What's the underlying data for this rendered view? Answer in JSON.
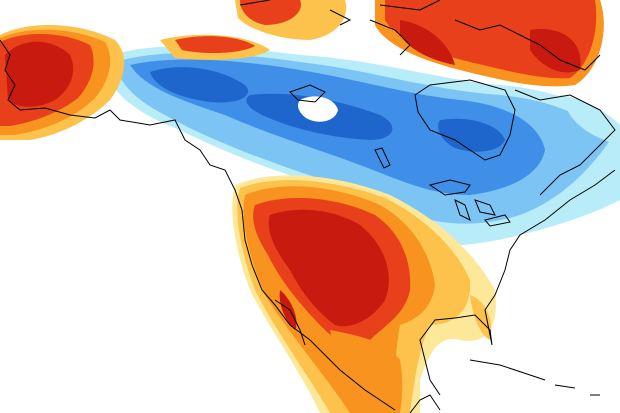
{
  "map": {
    "region": "North America",
    "palette": {
      "dark_red": "#c81a0e",
      "red": "#e8401a",
      "orange": "#f7931e",
      "light_orange": "#fcc24c",
      "yellow": "#fde89a",
      "white": "#ffffff",
      "light_cyan": "#b8ecf8",
      "light_blue": "#7cc4f4",
      "blue": "#3f8fe8",
      "dark_blue": "#1f66cc"
    },
    "coastline_color": "#000000"
  }
}
